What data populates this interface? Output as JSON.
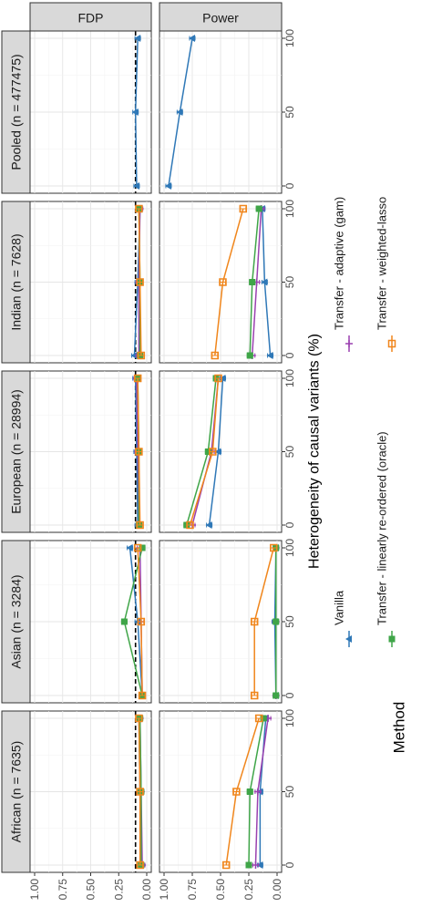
{
  "chart_data": {
    "type": "line",
    "facet_rows": [
      "Pooled (n = 477475)",
      "Indian (n = 7628)",
      "European (n = 28994)",
      "Asian (n = 3284)",
      "African (n = 7635)"
    ],
    "facet_cols": [
      "FDP",
      "Power"
    ],
    "xlabel": "Heterogeneity of causal variants (%)",
    "ylabel": "",
    "x_ticks": [
      0,
      50,
      100
    ],
    "y_ticks": [
      1.0,
      0.75,
      0.5,
      0.25,
      0.0
    ],
    "y_tick_labels": [
      "1.00",
      "0.75",
      "0.50",
      "0.25",
      "0.00"
    ],
    "ylim": [
      0,
      1
    ],
    "fdr_reference_line": 0.1,
    "legend_title": "Method",
    "methods": [
      {
        "name": "Vanilla",
        "color": "#2F78B7",
        "marker": "triangle"
      },
      {
        "name": "Transfer - adaptive (gam)",
        "color": "#9A41B0",
        "marker": "plus"
      },
      {
        "name": "Transfer - linearly re-ordered (oracle)",
        "color": "#3FA548",
        "marker": "square"
      },
      {
        "name": "Transfer - weighted-lasso",
        "color": "#F0861C",
        "marker": "square-open"
      }
    ],
    "panels": {
      "Pooled (n = 477475)": {
        "FDP": {
          "Vanilla": [
            0.09,
            0.1,
            0.08
          ]
        },
        "Power": {
          "Vanilla": [
            0.96,
            0.86,
            0.75
          ]
        }
      },
      "Indian (n = 7628)": {
        "FDP": {
          "Vanilla": [
            0.11,
            0.08,
            0.06
          ],
          "Transfer - adaptive (gam)": [
            0.07,
            0.07,
            0.06
          ],
          "Transfer - linearly re-ordered (oracle)": [
            0.06,
            0.06,
            0.07
          ],
          "Transfer - weighted-lasso": [
            0.05,
            0.06,
            0.07
          ]
        },
        "Power": {
          "Vanilla": [
            0.06,
            0.11,
            0.13
          ],
          "Transfer - adaptive (gam)": [
            0.22,
            0.18,
            0.14
          ],
          "Transfer - linearly re-ordered (oracle)": [
            0.24,
            0.22,
            0.16
          ],
          "Transfer - weighted-lasso": [
            0.55,
            0.48,
            0.3
          ]
        }
      },
      "European (n = 28994)": {
        "FDP": {
          "Vanilla": [
            0.08,
            0.09,
            0.1
          ],
          "Transfer - adaptive (gam)": [
            0.07,
            0.08,
            0.09
          ],
          "Transfer - linearly re-ordered (oracle)": [
            0.07,
            0.07,
            0.08
          ],
          "Transfer - weighted-lasso": [
            0.06,
            0.07,
            0.08
          ]
        },
        "Power": {
          "Vanilla": [
            0.6,
            0.52,
            0.48
          ],
          "Transfer - adaptive (gam)": [
            0.75,
            0.58,
            0.52
          ],
          "Transfer - linearly re-ordered (oracle)": [
            0.8,
            0.61,
            0.54
          ],
          "Transfer - weighted-lasso": [
            0.77,
            0.57,
            0.52
          ]
        }
      },
      "Asian (n = 3284)": {
        "FDP": {
          "Vanilla": [
            0.04,
            0.08,
            0.15
          ],
          "Transfer - adaptive (gam)": [
            0.04,
            0.05,
            0.06
          ],
          "Transfer - linearly re-ordered (oracle)": [
            0.04,
            0.2,
            0.04
          ],
          "Transfer - weighted-lasso": [
            0.04,
            0.05,
            0.08
          ]
        },
        "Power": {
          "Vanilla": [
            0.01,
            0.02,
            0.01
          ],
          "Transfer - adaptive (gam)": [
            0.01,
            0.01,
            0.01
          ],
          "Transfer - linearly re-ordered (oracle)": [
            0.01,
            0.01,
            0.01
          ],
          "Transfer - weighted-lasso": [
            0.2,
            0.2,
            0.03
          ]
        }
      },
      "African (n = 7635)": {
        "FDP": {
          "Vanilla": [
            0.05,
            0.06,
            0.07
          ],
          "Transfer - adaptive (gam)": [
            0.04,
            0.05,
            0.06
          ],
          "Transfer - linearly re-ordered (oracle)": [
            0.05,
            0.05,
            0.06
          ],
          "Transfer - weighted-lasso": [
            0.06,
            0.06,
            0.07
          ]
        },
        "Power": {
          "Vanilla": [
            0.15,
            0.15,
            0.1
          ],
          "Transfer - adaptive (gam)": [
            0.19,
            0.17,
            0.08
          ],
          "Transfer - linearly re-ordered (oracle)": [
            0.25,
            0.24,
            0.12
          ],
          "Transfer - weighted-lasso": [
            0.45,
            0.36,
            0.16
          ]
        }
      }
    },
    "grid": true,
    "legend_position": "right"
  }
}
